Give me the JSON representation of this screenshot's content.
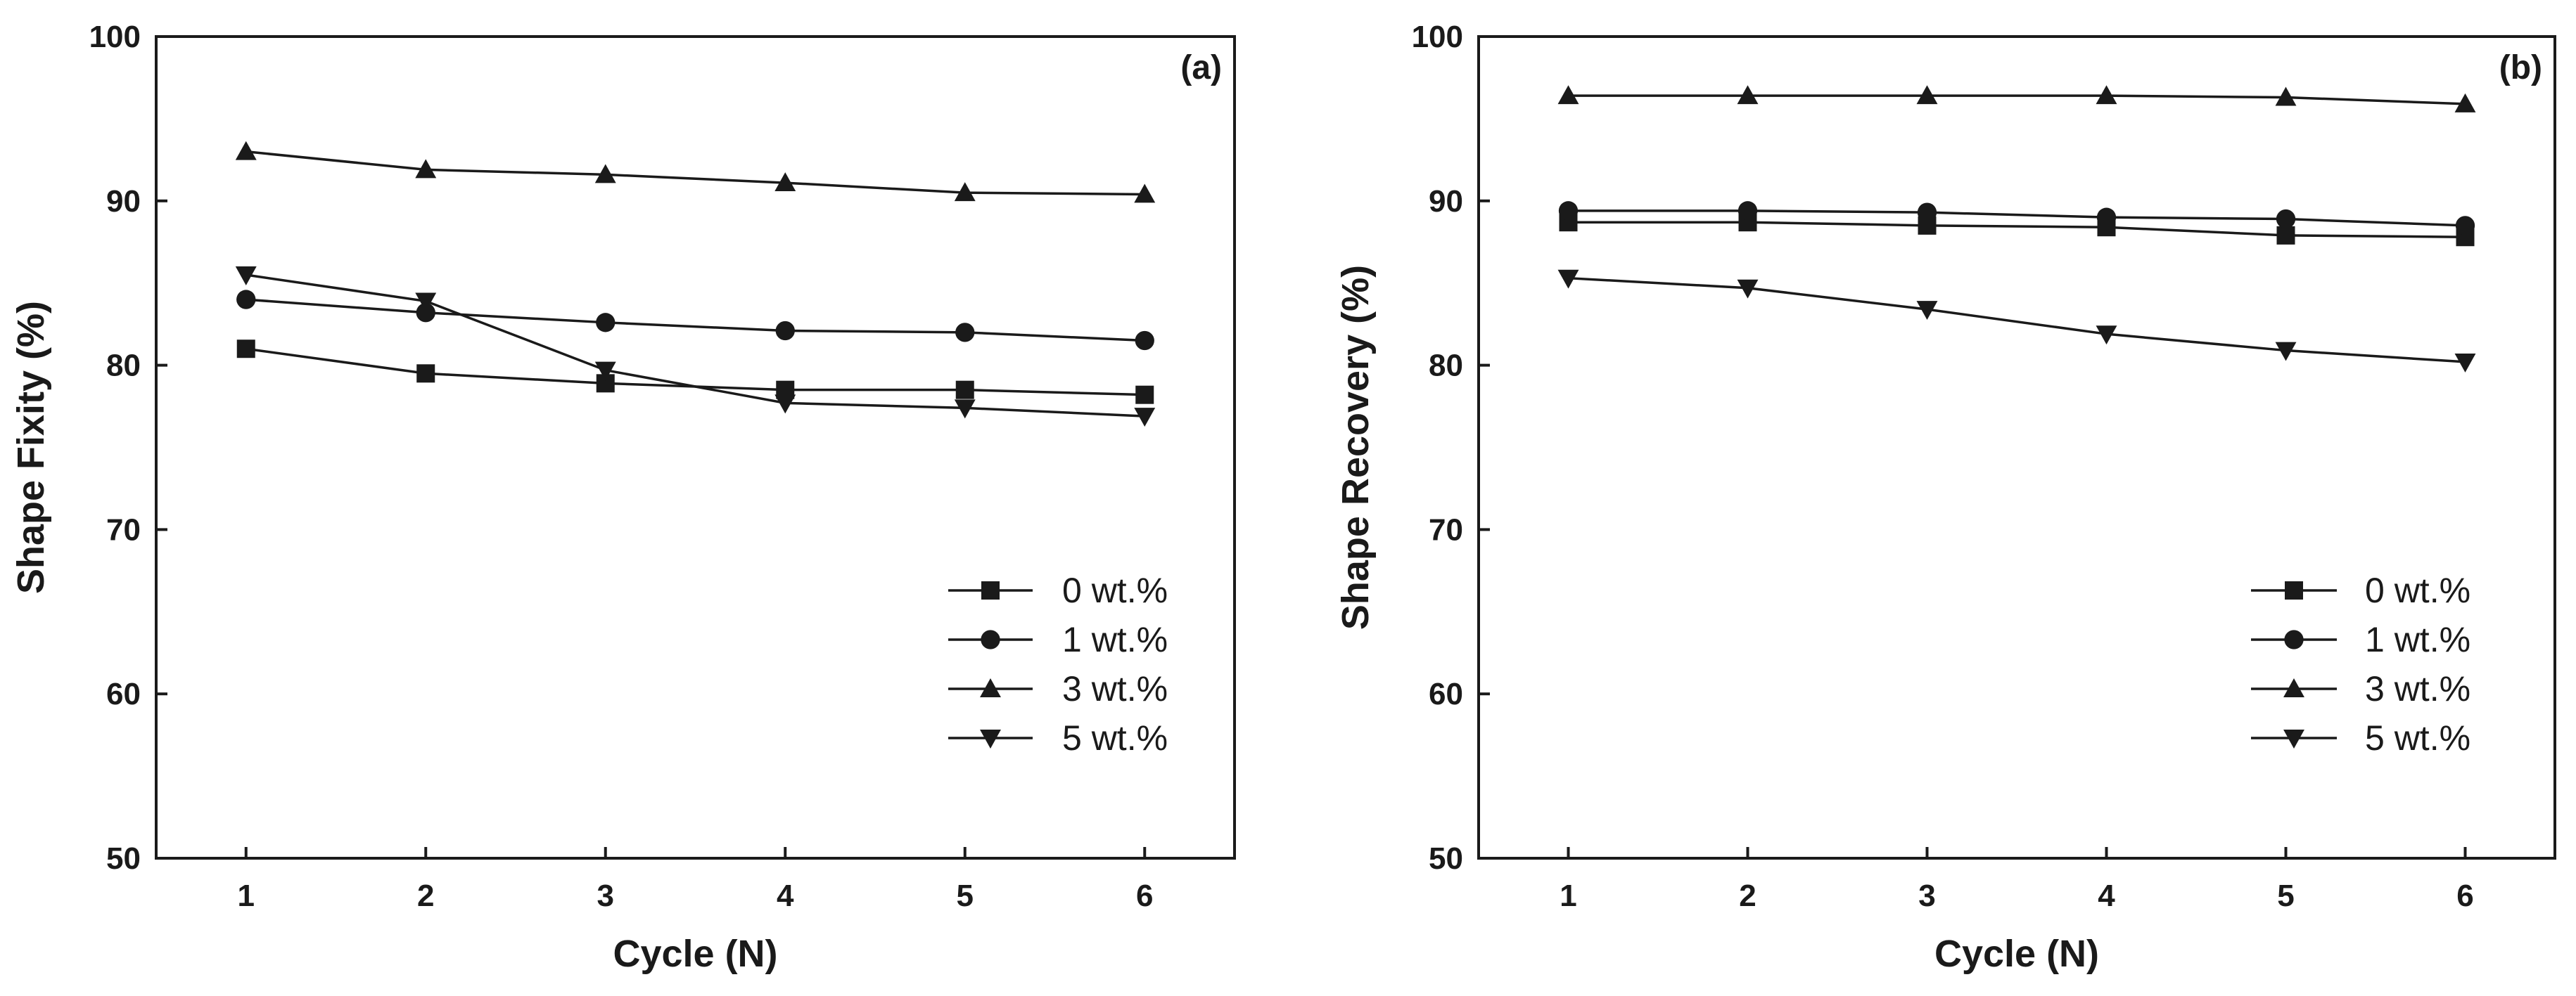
{
  "chart_data": [
    {
      "type": "line",
      "panel_label": "(a)",
      "xlabel": "Cycle (N)",
      "ylabel": "Shape Fixity (%)",
      "xlim": [
        0.5,
        6.5
      ],
      "ylim": [
        50,
        100
      ],
      "xticks": [
        1,
        2,
        3,
        4,
        5,
        6
      ],
      "yticks": [
        50,
        60,
        70,
        80,
        90,
        100
      ],
      "legend_position": "bottom-right",
      "x": [
        1,
        2,
        3,
        4,
        5,
        6
      ],
      "series": [
        {
          "name": "0 wt.%",
          "marker": "square",
          "values": [
            81.0,
            79.5,
            78.9,
            78.5,
            78.5,
            78.2
          ]
        },
        {
          "name": "1 wt.%",
          "marker": "circle",
          "values": [
            84.0,
            83.2,
            82.6,
            82.1,
            82.0,
            81.5
          ]
        },
        {
          "name": "3 wt.%",
          "marker": "triangle-up",
          "values": [
            93.0,
            91.9,
            91.6,
            91.1,
            90.5,
            90.4
          ]
        },
        {
          "name": "5 wt.%",
          "marker": "triangle-down",
          "values": [
            85.5,
            83.9,
            79.7,
            77.7,
            77.4,
            76.9
          ]
        }
      ]
    },
    {
      "type": "line",
      "panel_label": "(b)",
      "xlabel": "Cycle (N)",
      "ylabel": "Shape Recovery (%)",
      "xlim": [
        0.5,
        6.5
      ],
      "ylim": [
        50,
        100
      ],
      "xticks": [
        1,
        2,
        3,
        4,
        5,
        6
      ],
      "yticks": [
        50,
        60,
        70,
        80,
        90,
        100
      ],
      "legend_position": "bottom-right",
      "x": [
        1,
        2,
        3,
        4,
        5,
        6
      ],
      "series": [
        {
          "name": "0 wt.%",
          "marker": "square",
          "values": [
            88.7,
            88.7,
            88.5,
            88.4,
            87.9,
            87.8
          ]
        },
        {
          "name": "1 wt.%",
          "marker": "circle",
          "values": [
            89.4,
            89.4,
            89.3,
            89.0,
            88.9,
            88.5
          ]
        },
        {
          "name": "3 wt.%",
          "marker": "triangle-up",
          "values": [
            96.4,
            96.4,
            96.4,
            96.4,
            96.3,
            95.9
          ]
        },
        {
          "name": "5 wt.%",
          "marker": "triangle-down",
          "values": [
            85.3,
            84.7,
            83.4,
            81.9,
            80.9,
            80.2
          ]
        }
      ]
    }
  ],
  "colors": {
    "ink": "#1a1a1a",
    "background": "#ffffff"
  }
}
